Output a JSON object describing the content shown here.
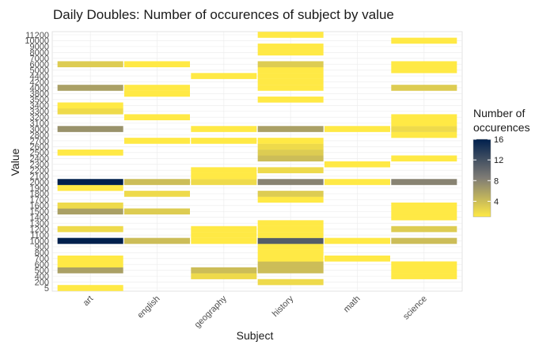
{
  "chart_data": {
    "type": "heatmap",
    "title": "Daily Doubles: Number of occurences of subject by value",
    "xlabel": "Subject",
    "ylabel": "Value",
    "legend": {
      "title_lines": [
        "Number of",
        "occurences"
      ],
      "ticks": [
        4,
        8,
        12,
        16
      ],
      "min": 1,
      "max": 16,
      "placement": "right"
    },
    "colors": {
      "low": "#FFE945",
      "mid": "#7F7C75",
      "high": "#00204D"
    },
    "grid": true,
    "categories": [
      "art",
      "english",
      "geography",
      "history",
      "math",
      "science"
    ],
    "y_levels": [
      "5",
      "200",
      "400",
      "500",
      "600",
      "700",
      "800",
      "900",
      "1000",
      "1100",
      "1200",
      "1300",
      "1400",
      "1500",
      "1600",
      "1700",
      "1800",
      "1900",
      "2000",
      "2100",
      "2200",
      "2300",
      "2400",
      "2500",
      "2600",
      "2700",
      "2800",
      "3000",
      "3100",
      "3200",
      "3300",
      "3400",
      "3500",
      "3800",
      "4000",
      "4200",
      "4400",
      "5000",
      "6000",
      "7000",
      "8000",
      "9000",
      "10000",
      "11200"
    ],
    "cells": [
      {
        "x": "art",
        "y": "5",
        "value": 1
      },
      {
        "x": "art",
        "y": "500",
        "value": 6
      },
      {
        "x": "art",
        "y": "600",
        "value": 1
      },
      {
        "x": "art",
        "y": "700",
        "value": 1
      },
      {
        "x": "art",
        "y": "1000",
        "value": 16
      },
      {
        "x": "art",
        "y": "1200",
        "value": 2
      },
      {
        "x": "art",
        "y": "1500",
        "value": 6
      },
      {
        "x": "art",
        "y": "1600",
        "value": 2
      },
      {
        "x": "art",
        "y": "1900",
        "value": 1
      },
      {
        "x": "art",
        "y": "2000",
        "value": 16
      },
      {
        "x": "art",
        "y": "2500",
        "value": 1
      },
      {
        "x": "art",
        "y": "3000",
        "value": 7
      },
      {
        "x": "art",
        "y": "3300",
        "value": 2
      },
      {
        "x": "art",
        "y": "3400",
        "value": 1
      },
      {
        "x": "art",
        "y": "4000",
        "value": 6
      },
      {
        "x": "art",
        "y": "6000",
        "value": 3
      },
      {
        "x": "english",
        "y": "1000",
        "value": 4
      },
      {
        "x": "english",
        "y": "1500",
        "value": 3
      },
      {
        "x": "english",
        "y": "1800",
        "value": 2
      },
      {
        "x": "english",
        "y": "2000",
        "value": 4
      },
      {
        "x": "english",
        "y": "2700",
        "value": 1
      },
      {
        "x": "english",
        "y": "3200",
        "value": 1
      },
      {
        "x": "english",
        "y": "3800",
        "value": 1
      },
      {
        "x": "english",
        "y": "4000",
        "value": 1
      },
      {
        "x": "english",
        "y": "6000",
        "value": 1
      },
      {
        "x": "geography",
        "y": "400",
        "value": 2
      },
      {
        "x": "geography",
        "y": "500",
        "value": 4
      },
      {
        "x": "geography",
        "y": "1000",
        "value": 1
      },
      {
        "x": "geography",
        "y": "1100",
        "value": 1
      },
      {
        "x": "geography",
        "y": "1200",
        "value": 1
      },
      {
        "x": "geography",
        "y": "2000",
        "value": 2
      },
      {
        "x": "geography",
        "y": "2100",
        "value": 1
      },
      {
        "x": "geography",
        "y": "2200",
        "value": 1
      },
      {
        "x": "geography",
        "y": "2700",
        "value": 1
      },
      {
        "x": "geography",
        "y": "3000",
        "value": 1
      },
      {
        "x": "geography",
        "y": "4400",
        "value": 1
      },
      {
        "x": "history",
        "y": "200",
        "value": 2
      },
      {
        "x": "history",
        "y": "500",
        "value": 4
      },
      {
        "x": "history",
        "y": "600",
        "value": 4
      },
      {
        "x": "history",
        "y": "700",
        "value": 1
      },
      {
        "x": "history",
        "y": "800",
        "value": 1
      },
      {
        "x": "history",
        "y": "900",
        "value": 1
      },
      {
        "x": "history",
        "y": "1000",
        "value": 11
      },
      {
        "x": "history",
        "y": "1100",
        "value": 1
      },
      {
        "x": "history",
        "y": "1200",
        "value": 1
      },
      {
        "x": "history",
        "y": "1300",
        "value": 1
      },
      {
        "x": "history",
        "y": "1700",
        "value": 1
      },
      {
        "x": "history",
        "y": "1800",
        "value": 3
      },
      {
        "x": "history",
        "y": "2000",
        "value": 8
      },
      {
        "x": "history",
        "y": "2200",
        "value": 2
      },
      {
        "x": "history",
        "y": "2400",
        "value": 4
      },
      {
        "x": "history",
        "y": "2500",
        "value": 3
      },
      {
        "x": "history",
        "y": "2600",
        "value": 2
      },
      {
        "x": "history",
        "y": "2700",
        "value": 1
      },
      {
        "x": "history",
        "y": "3000",
        "value": 6
      },
      {
        "x": "history",
        "y": "3500",
        "value": 1
      },
      {
        "x": "history",
        "y": "4000",
        "value": 1
      },
      {
        "x": "history",
        "y": "4200",
        "value": 1
      },
      {
        "x": "history",
        "y": "4400",
        "value": 1
      },
      {
        "x": "history",
        "y": "5000",
        "value": 1
      },
      {
        "x": "history",
        "y": "6000",
        "value": 3
      },
      {
        "x": "history",
        "y": "8000",
        "value": 1
      },
      {
        "x": "history",
        "y": "9000",
        "value": 1
      },
      {
        "x": "history",
        "y": "11200",
        "value": 1
      },
      {
        "x": "math",
        "y": "700",
        "value": 1
      },
      {
        "x": "math",
        "y": "1000",
        "value": 1
      },
      {
        "x": "math",
        "y": "2000",
        "value": 1
      },
      {
        "x": "math",
        "y": "2300",
        "value": 1
      },
      {
        "x": "math",
        "y": "3000",
        "value": 1
      },
      {
        "x": "science",
        "y": "400",
        "value": 1
      },
      {
        "x": "science",
        "y": "500",
        "value": 1
      },
      {
        "x": "science",
        "y": "600",
        "value": 1
      },
      {
        "x": "science",
        "y": "1000",
        "value": 4
      },
      {
        "x": "science",
        "y": "1200",
        "value": 3
      },
      {
        "x": "science",
        "y": "1400",
        "value": 1
      },
      {
        "x": "science",
        "y": "1500",
        "value": 1
      },
      {
        "x": "science",
        "y": "1600",
        "value": 1
      },
      {
        "x": "science",
        "y": "2000",
        "value": 8
      },
      {
        "x": "science",
        "y": "2400",
        "value": 1
      },
      {
        "x": "science",
        "y": "2800",
        "value": 1
      },
      {
        "x": "science",
        "y": "3000",
        "value": 2
      },
      {
        "x": "science",
        "y": "3100",
        "value": 1
      },
      {
        "x": "science",
        "y": "3200",
        "value": 1
      },
      {
        "x": "science",
        "y": "4000",
        "value": 3
      },
      {
        "x": "science",
        "y": "5000",
        "value": 1
      },
      {
        "x": "science",
        "y": "6000",
        "value": 1
      },
      {
        "x": "science",
        "y": "10000",
        "value": 1
      }
    ]
  }
}
